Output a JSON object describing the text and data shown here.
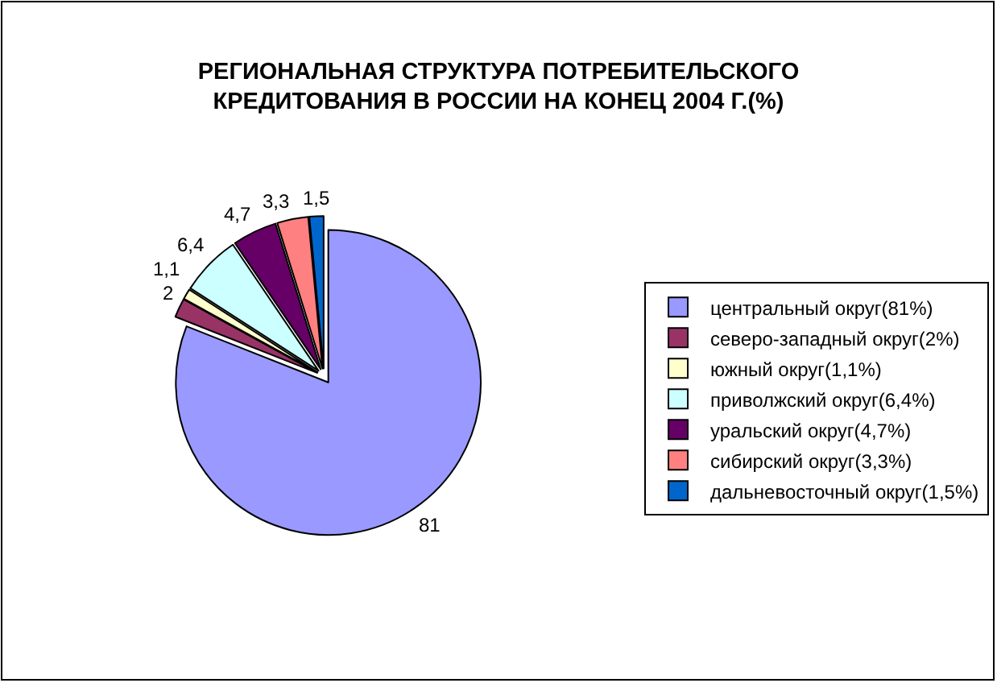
{
  "chart_data": {
    "type": "pie",
    "title": "РЕГИОНАЛЬНАЯ СТРУКТУРА ПОТРЕБИТЕЛЬСКОГО\nКРЕДИТОВАНИЯ В РОССИИ НА КОНЕЦ 2004 Г.(%)",
    "categories": [
      "центральный округ(81%)",
      "северо-западный округ(2%)",
      "южный округ(1,1%)",
      "приволжский округ(6,4%)",
      "уральский округ(4,7%)",
      "сибирский округ(3,3%)",
      "дальневосточный округ(1,5%)"
    ],
    "values": [
      81,
      2,
      1.1,
      6.4,
      4.7,
      3.3,
      1.5
    ],
    "value_labels": [
      "81",
      "2",
      "1,1",
      "6,4",
      "4,7",
      "3,3",
      "1,5"
    ],
    "colors": [
      "#9999ff",
      "#993366",
      "#ffffcc",
      "#ccffff",
      "#660066",
      "#ff8080",
      "#0066cc"
    ],
    "legend": "right"
  }
}
